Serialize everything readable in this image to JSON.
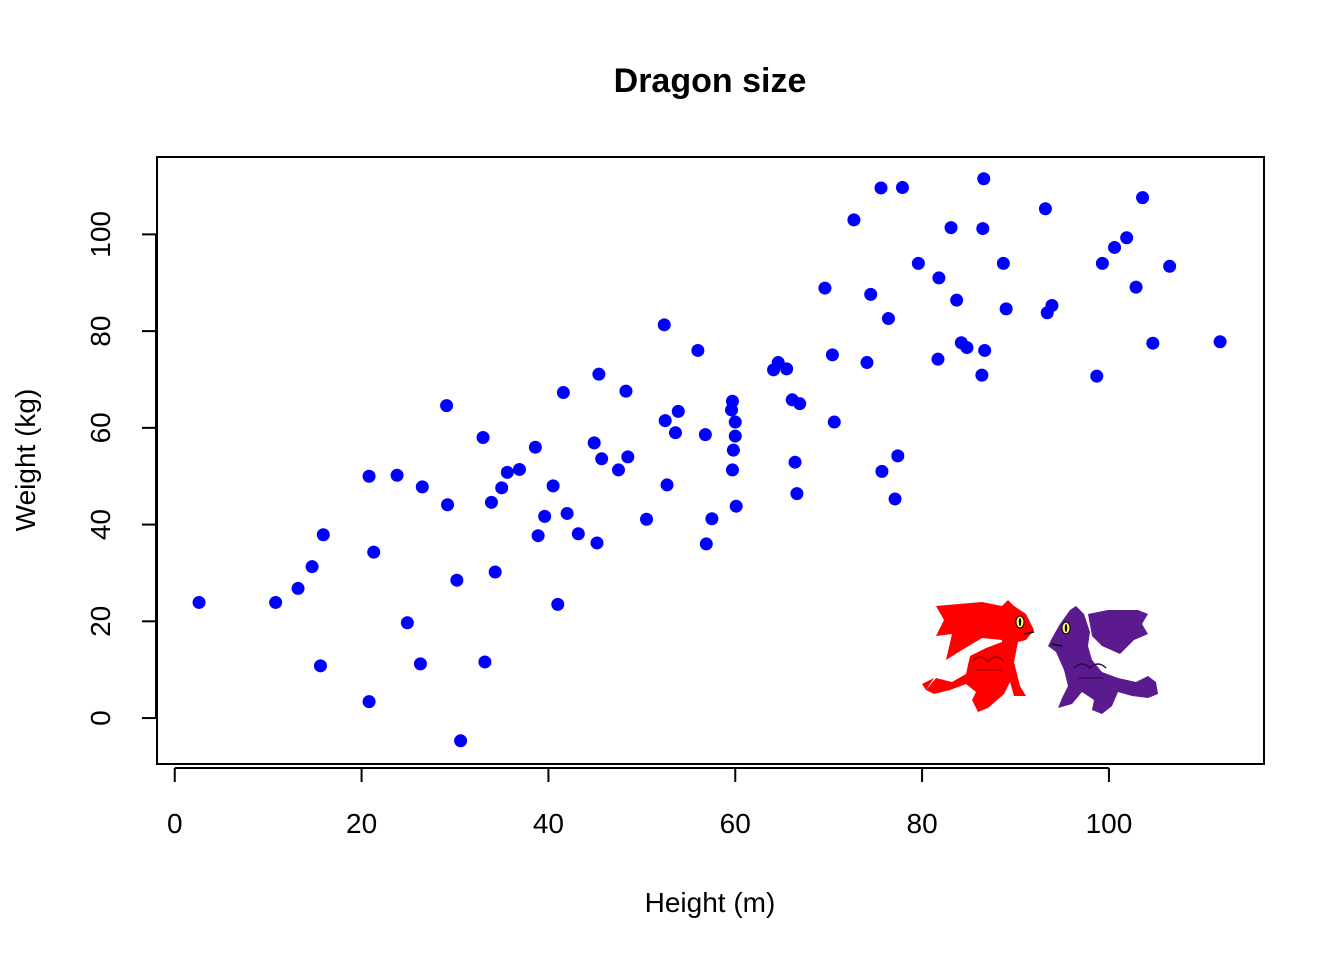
{
  "chart_data": {
    "type": "scatter",
    "title": "Dragon size",
    "xlabel": "Height (m)",
    "ylabel": "Weight (kg)",
    "xlim": [
      -1.9,
      116.6
    ],
    "ylim": [
      -9.5,
      116.0
    ],
    "xticks": [
      0,
      20,
      40,
      60,
      80,
      100
    ],
    "yticks": [
      0,
      20,
      40,
      60,
      80,
      100
    ],
    "xtick_labels": [
      "0",
      "20",
      "40",
      "60",
      "80",
      "100"
    ],
    "ytick_labels": [
      "0",
      "20",
      "40",
      "60",
      "80",
      "100"
    ],
    "grid": false,
    "point_color": "#0000ff",
    "decorations": [
      "red-dragon",
      "purple-dragon"
    ],
    "points": [
      {
        "x": 2.6,
        "y": 23.9
      },
      {
        "x": 10.8,
        "y": 23.9
      },
      {
        "x": 13.2,
        "y": 26.8
      },
      {
        "x": 14.7,
        "y": 31.3
      },
      {
        "x": 15.6,
        "y": 10.8
      },
      {
        "x": 15.9,
        "y": 37.9
      },
      {
        "x": 20.8,
        "y": 3.4
      },
      {
        "x": 20.8,
        "y": 50.0
      },
      {
        "x": 21.3,
        "y": 34.3
      },
      {
        "x": 23.8,
        "y": 50.2
      },
      {
        "x": 24.9,
        "y": 19.7
      },
      {
        "x": 26.3,
        "y": 11.2
      },
      {
        "x": 26.5,
        "y": 47.8
      },
      {
        "x": 29.1,
        "y": 64.6
      },
      {
        "x": 29.2,
        "y": 44.1
      },
      {
        "x": 30.2,
        "y": 28.5
      },
      {
        "x": 30.6,
        "y": -4.7
      },
      {
        "x": 33.0,
        "y": 58.0
      },
      {
        "x": 33.2,
        "y": 11.6
      },
      {
        "x": 33.9,
        "y": 44.6
      },
      {
        "x": 34.3,
        "y": 30.2
      },
      {
        "x": 35.0,
        "y": 47.6
      },
      {
        "x": 35.6,
        "y": 50.8
      },
      {
        "x": 36.9,
        "y": 51.4
      },
      {
        "x": 38.6,
        "y": 56.0
      },
      {
        "x": 38.9,
        "y": 37.7
      },
      {
        "x": 39.6,
        "y": 41.7
      },
      {
        "x": 40.5,
        "y": 48.0
      },
      {
        "x": 41.0,
        "y": 23.5
      },
      {
        "x": 41.6,
        "y": 67.3
      },
      {
        "x": 42.0,
        "y": 42.3
      },
      {
        "x": 43.2,
        "y": 38.1
      },
      {
        "x": 44.9,
        "y": 56.9
      },
      {
        "x": 45.2,
        "y": 36.2
      },
      {
        "x": 45.4,
        "y": 71.1
      },
      {
        "x": 45.7,
        "y": 53.6
      },
      {
        "x": 47.5,
        "y": 51.3
      },
      {
        "x": 48.3,
        "y": 67.6
      },
      {
        "x": 48.5,
        "y": 54.0
      },
      {
        "x": 50.5,
        "y": 41.1
      },
      {
        "x": 52.4,
        "y": 81.3
      },
      {
        "x": 52.5,
        "y": 61.5
      },
      {
        "x": 52.7,
        "y": 48.2
      },
      {
        "x": 53.6,
        "y": 59.0
      },
      {
        "x": 53.9,
        "y": 63.4
      },
      {
        "x": 56.0,
        "y": 76.0
      },
      {
        "x": 56.8,
        "y": 58.6
      },
      {
        "x": 56.9,
        "y": 36.0
      },
      {
        "x": 57.5,
        "y": 41.2
      },
      {
        "x": 59.6,
        "y": 63.7
      },
      {
        "x": 59.7,
        "y": 51.3
      },
      {
        "x": 59.7,
        "y": 65.5
      },
      {
        "x": 59.8,
        "y": 55.4
      },
      {
        "x": 60.0,
        "y": 61.2
      },
      {
        "x": 60.0,
        "y": 58.3
      },
      {
        "x": 60.1,
        "y": 43.8
      },
      {
        "x": 64.1,
        "y": 72.0
      },
      {
        "x": 64.6,
        "y": 73.5
      },
      {
        "x": 65.5,
        "y": 72.2
      },
      {
        "x": 66.1,
        "y": 65.8
      },
      {
        "x": 66.4,
        "y": 52.9
      },
      {
        "x": 66.6,
        "y": 46.4
      },
      {
        "x": 66.9,
        "y": 65.0
      },
      {
        "x": 69.6,
        "y": 88.9
      },
      {
        "x": 70.4,
        "y": 75.1
      },
      {
        "x": 70.6,
        "y": 61.2
      },
      {
        "x": 72.7,
        "y": 103.0
      },
      {
        "x": 74.1,
        "y": 73.5
      },
      {
        "x": 74.5,
        "y": 87.6
      },
      {
        "x": 75.6,
        "y": 109.6
      },
      {
        "x": 75.7,
        "y": 51.0
      },
      {
        "x": 76.4,
        "y": 82.6
      },
      {
        "x": 77.1,
        "y": 45.3
      },
      {
        "x": 77.4,
        "y": 54.2
      },
      {
        "x": 77.9,
        "y": 109.7
      },
      {
        "x": 79.6,
        "y": 94.0
      },
      {
        "x": 81.7,
        "y": 74.2
      },
      {
        "x": 81.8,
        "y": 91.0
      },
      {
        "x": 83.1,
        "y": 101.4
      },
      {
        "x": 83.7,
        "y": 86.4
      },
      {
        "x": 84.2,
        "y": 77.6
      },
      {
        "x": 84.8,
        "y": 76.6
      },
      {
        "x": 86.4,
        "y": 70.9
      },
      {
        "x": 86.5,
        "y": 101.2
      },
      {
        "x": 86.6,
        "y": 111.5
      },
      {
        "x": 86.7,
        "y": 76.0
      },
      {
        "x": 88.7,
        "y": 94.0
      },
      {
        "x": 89.0,
        "y": 84.6
      },
      {
        "x": 93.2,
        "y": 105.3
      },
      {
        "x": 93.4,
        "y": 83.8
      },
      {
        "x": 93.9,
        "y": 85.3
      },
      {
        "x": 98.7,
        "y": 70.7
      },
      {
        "x": 99.3,
        "y": 94.0
      },
      {
        "x": 100.6,
        "y": 97.3
      },
      {
        "x": 101.9,
        "y": 99.3
      },
      {
        "x": 102.9,
        "y": 89.1
      },
      {
        "x": 103.6,
        "y": 107.6
      },
      {
        "x": 104.7,
        "y": 77.5
      },
      {
        "x": 106.5,
        "y": 93.4
      },
      {
        "x": 111.9,
        "y": 77.8
      }
    ]
  }
}
